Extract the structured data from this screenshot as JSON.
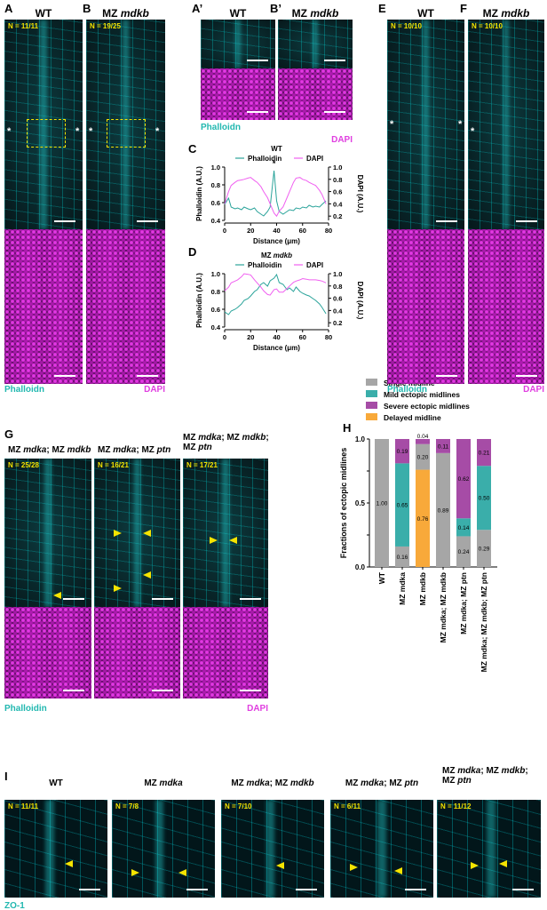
{
  "panels": {
    "A": {
      "letter": "A",
      "title": "WT",
      "n": "N = 11/11"
    },
    "B": {
      "letter": "B",
      "title": "MZ mdkb",
      "n": "N = 19/25"
    },
    "A2": {
      "letter": "A’",
      "title": "WT"
    },
    "B2": {
      "letter": "B’",
      "title": "MZ mdkb"
    },
    "E": {
      "letter": "E",
      "title": "WT",
      "n": "N = 10/10"
    },
    "F": {
      "letter": "F",
      "title": "MZ mdkb",
      "n": "N = 10/10"
    },
    "G": {
      "letter": "G",
      "items": [
        {
          "title": "MZ mdka; MZ mdkb",
          "n": "N = 25/28"
        },
        {
          "title": "MZ mdka; MZ ptn",
          "n": "N = 16/21"
        },
        {
          "title": "MZ mdka; MZ mdkb;\nMZ ptn",
          "n": "N = 17/21"
        }
      ]
    },
    "H": {
      "letter": "H"
    },
    "I": {
      "letter": "I",
      "items": [
        {
          "title": "WT",
          "n": "N = 11/11"
        },
        {
          "title": "MZ mdka",
          "n": "N = 7/8"
        },
        {
          "title": "MZ mdka; MZ mdkb",
          "n": "N = 7/10"
        },
        {
          "title": "MZ mdka; MZ ptn",
          "n": "N = 6/11"
        },
        {
          "title": "MZ mdka; MZ mdkb;\nMZ ptn",
          "n": "N = 11/12"
        }
      ]
    },
    "C": {
      "letter": "C"
    },
    "D": {
      "letter": "D"
    }
  },
  "stains": {
    "phalloidin_ab": "Phalloidn",
    "phalloidin_g": "Phalloidin",
    "dapi": "DAPI",
    "zo1": "ZO-1"
  },
  "annotations": {
    "asterisk": "*"
  },
  "colors": {
    "cyan": "#22b8b0",
    "magenta": "#e040e0",
    "yellow": "#f5e400",
    "gray": "#a6a6a6",
    "teal": "#3aaeaa",
    "purple": "#a64ca6",
    "orange": "#f8a93a"
  },
  "chart_data": [
    {
      "id": "C",
      "type": "line",
      "title": "WT",
      "xlabel": "Distance (μm)",
      "ylabel": "Phalloidin (A.U.)",
      "y2label": "DAPI (A.U.)",
      "xlim": [
        0,
        80
      ],
      "ylim": [
        0.4,
        1.0
      ],
      "y2lim": [
        0.13,
        1.0
      ],
      "xticks": [
        "0",
        "20",
        "40",
        "60",
        "80"
      ],
      "yticks": [
        "0.4",
        "0.6",
        "0.8",
        "1.0"
      ],
      "y2ticks": [
        "0.2",
        "0.4",
        "0.6",
        "0.8",
        "1.0"
      ],
      "annotation": "*",
      "legend": "top",
      "series": [
        {
          "name": "Phalloidin",
          "axis": "left",
          "color": "#2aa39a",
          "x": [
            0,
            3,
            5,
            8,
            10,
            13,
            15,
            18,
            20,
            23,
            25,
            28,
            30,
            33,
            35,
            38,
            40,
            42,
            45,
            48,
            50,
            53,
            55,
            58,
            60,
            63,
            65,
            68,
            70,
            73,
            75,
            78
          ],
          "y": [
            0.58,
            0.65,
            0.55,
            0.53,
            0.54,
            0.52,
            0.55,
            0.53,
            0.52,
            0.54,
            0.5,
            0.47,
            0.45,
            0.5,
            0.55,
            0.96,
            0.62,
            0.5,
            0.47,
            0.5,
            0.52,
            0.51,
            0.54,
            0.53,
            0.55,
            0.54,
            0.57,
            0.55,
            0.56,
            0.55,
            0.58,
            0.62
          ]
        },
        {
          "name": "DAPI",
          "axis": "right",
          "color": "#f060f0",
          "x": [
            0,
            3,
            5,
            8,
            10,
            13,
            15,
            18,
            20,
            23,
            25,
            28,
            30,
            33,
            35,
            38,
            40,
            42,
            45,
            48,
            50,
            53,
            55,
            58,
            60,
            63,
            65,
            68,
            70,
            73,
            75,
            78
          ],
          "y": [
            0.4,
            0.6,
            0.7,
            0.75,
            0.78,
            0.79,
            0.8,
            0.82,
            0.83,
            0.78,
            0.75,
            0.68,
            0.6,
            0.5,
            0.4,
            0.25,
            0.2,
            0.28,
            0.35,
            0.5,
            0.6,
            0.75,
            0.82,
            0.83,
            0.8,
            0.78,
            0.75,
            0.72,
            0.7,
            0.62,
            0.55,
            0.4
          ]
        }
      ]
    },
    {
      "id": "D",
      "type": "line",
      "title": "MZ mdkb",
      "xlabel": "Distance (μm)",
      "ylabel": "Phalloidin (A.U.)",
      "y2label": "DAPI (A.U.)",
      "xlim": [
        0,
        80
      ],
      "ylim": [
        0.4,
        1.0
      ],
      "y2lim": [
        0.13,
        1.0
      ],
      "xticks": [
        "0",
        "20",
        "40",
        "60",
        "80"
      ],
      "yticks": [
        "0.4",
        "0.6",
        "0.8",
        "1.0"
      ],
      "y2ticks": [
        "0.2",
        "0.4",
        "0.6",
        "0.8",
        "1.0"
      ],
      "legend": "top",
      "series": [
        {
          "name": "Phalloidin",
          "axis": "left",
          "color": "#2aa39a",
          "x": [
            0,
            3,
            5,
            8,
            10,
            13,
            15,
            18,
            20,
            23,
            25,
            28,
            30,
            33,
            35,
            38,
            40,
            42,
            45,
            48,
            50,
            53,
            55,
            58,
            60,
            63,
            65,
            68,
            70,
            73,
            75,
            78
          ],
          "y": [
            0.57,
            0.54,
            0.58,
            0.6,
            0.62,
            0.66,
            0.7,
            0.72,
            0.75,
            0.8,
            0.82,
            0.88,
            0.9,
            0.86,
            0.92,
            0.95,
            0.99,
            0.9,
            0.88,
            0.82,
            0.84,
            0.8,
            0.85,
            0.8,
            0.78,
            0.76,
            0.75,
            0.72,
            0.7,
            0.66,
            0.62,
            0.55
          ]
        },
        {
          "name": "DAPI",
          "axis": "right",
          "color": "#f060f0",
          "x": [
            0,
            3,
            5,
            8,
            10,
            13,
            15,
            18,
            20,
            23,
            25,
            28,
            30,
            33,
            35,
            38,
            40,
            42,
            45,
            48,
            50,
            53,
            55,
            58,
            60,
            63,
            65,
            68,
            70,
            73,
            75,
            78
          ],
          "y": [
            0.72,
            0.78,
            0.85,
            0.88,
            0.9,
            0.95,
            1.0,
            0.99,
            0.98,
            0.9,
            0.85,
            0.78,
            0.72,
            0.66,
            0.65,
            0.74,
            0.75,
            0.7,
            0.7,
            0.76,
            0.8,
            0.86,
            0.88,
            0.9,
            0.92,
            0.91,
            0.9,
            0.9,
            0.9,
            0.89,
            0.88,
            0.85
          ]
        }
      ]
    },
    {
      "id": "H",
      "type": "bar",
      "stacked": true,
      "ylabel": "Fractions of ectopic midlines",
      "ylim": [
        0,
        1.0
      ],
      "yticks": [
        "0.0",
        "0.5",
        "1.0"
      ],
      "legend": "top",
      "categories": [
        "WT",
        "MZ mdka",
        "MZ mdkb",
        "MZ mdka; MZ mdkb",
        "MZ mdka; MZ ptn",
        "MZ mdka; MZ mdkb; MZ ptn"
      ],
      "series": [
        {
          "name": "Delayed midline",
          "color": "#f8a93a",
          "values": [
            0,
            0,
            0.76,
            0,
            0,
            0
          ],
          "labels": [
            "",
            "",
            "0.76",
            "",
            "",
            ""
          ]
        },
        {
          "name": "Single midline",
          "color": "#a6a6a6",
          "values": [
            1.0,
            0.16,
            0.2,
            0.89,
            0.24,
            0.29
          ],
          "labels": [
            "1.00",
            "0.16",
            "0.20",
            "0.89",
            "0.24",
            "0.29"
          ]
        },
        {
          "name": "Mild ectopic midlines",
          "color": "#3aaeaa",
          "values": [
            0,
            0.65,
            0,
            0,
            0.14,
            0.5
          ],
          "labels": [
            "",
            "0.65",
            "",
            "",
            "0.14",
            "0.50"
          ]
        },
        {
          "name": "Severe ectopic midlines",
          "color": "#a64ca6",
          "values": [
            0,
            0.19,
            0.04,
            0.11,
            0.62,
            0.21
          ],
          "labels": [
            "",
            "0.19",
            "0.04",
            "0.11",
            "0.62",
            "0.21"
          ]
        }
      ],
      "legend_order": [
        "Single midline",
        "Mild ectopic midlines",
        "Severe ectopic midlines",
        "Delayed midline"
      ]
    }
  ]
}
